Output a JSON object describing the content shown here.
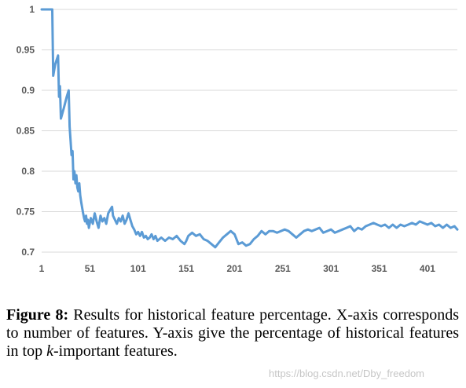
{
  "caption": {
    "label": "Figure 8:",
    "text_before_k": "Results for historical feature percentage. X-axis corresponds to number of features. Y-axis give the percentage of historical features in top ",
    "k": "k",
    "text_after_k": "-important features."
  },
  "watermark": "https://blog.csdn.net/Dby_freedom",
  "chart_data": {
    "type": "line",
    "title": "",
    "xlabel": "",
    "ylabel": "",
    "xlim": [
      1,
      432
    ],
    "ylim": [
      0.7,
      1.0
    ],
    "grid": "horizontal",
    "line_color": "#5b9bd5",
    "x_ticks": [
      1,
      51,
      101,
      151,
      201,
      251,
      301,
      351,
      401
    ],
    "y_ticks": [
      0.7,
      0.75,
      0.8,
      0.85,
      0.9,
      0.95,
      1
    ],
    "y_tick_labels": [
      "0.7",
      "0.75",
      "0.8",
      "0.85",
      "0.9",
      "0.95",
      "1"
    ],
    "series": [
      {
        "points": [
          [
            1,
            1.0
          ],
          [
            12,
            1.0
          ],
          [
            13,
            0.918
          ],
          [
            15,
            0.932
          ],
          [
            18,
            0.943
          ],
          [
            19,
            0.892
          ],
          [
            20,
            0.905
          ],
          [
            21,
            0.865
          ],
          [
            24,
            0.878
          ],
          [
            27,
            0.892
          ],
          [
            29,
            0.9
          ],
          [
            30,
            0.855
          ],
          [
            31,
            0.838
          ],
          [
            32,
            0.82
          ],
          [
            33,
            0.825
          ],
          [
            34,
            0.79
          ],
          [
            35,
            0.8
          ],
          [
            36,
            0.785
          ],
          [
            37,
            0.795
          ],
          [
            38,
            0.78
          ],
          [
            39,
            0.775
          ],
          [
            40,
            0.785
          ],
          [
            41,
            0.77
          ],
          [
            42,
            0.762
          ],
          [
            43,
            0.755
          ],
          [
            44,
            0.748
          ],
          [
            45,
            0.742
          ],
          [
            46,
            0.738
          ],
          [
            47,
            0.745
          ],
          [
            48,
            0.735
          ],
          [
            49,
            0.74
          ],
          [
            50,
            0.73
          ],
          [
            52,
            0.742
          ],
          [
            54,
            0.735
          ],
          [
            56,
            0.748
          ],
          [
            58,
            0.738
          ],
          [
            60,
            0.73
          ],
          [
            62,
            0.745
          ],
          [
            64,
            0.738
          ],
          [
            66,
            0.742
          ],
          [
            68,
            0.735
          ],
          [
            70,
            0.748
          ],
          [
            72,
            0.752
          ],
          [
            74,
            0.756
          ],
          [
            75,
            0.745
          ],
          [
            77,
            0.74
          ],
          [
            79,
            0.735
          ],
          [
            81,
            0.742
          ],
          [
            83,
            0.738
          ],
          [
            85,
            0.745
          ],
          [
            87,
            0.735
          ],
          [
            89,
            0.74
          ],
          [
            91,
            0.748
          ],
          [
            93,
            0.74
          ],
          [
            95,
            0.732
          ],
          [
            97,
            0.728
          ],
          [
            99,
            0.722
          ],
          [
            101,
            0.725
          ],
          [
            103,
            0.72
          ],
          [
            105,
            0.725
          ],
          [
            107,
            0.718
          ],
          [
            109,
            0.72
          ],
          [
            111,
            0.716
          ],
          [
            113,
            0.718
          ],
          [
            115,
            0.722
          ],
          [
            117,
            0.716
          ],
          [
            119,
            0.72
          ],
          [
            121,
            0.714
          ],
          [
            125,
            0.718
          ],
          [
            129,
            0.714
          ],
          [
            133,
            0.718
          ],
          [
            137,
            0.716
          ],
          [
            141,
            0.72
          ],
          [
            145,
            0.714
          ],
          [
            149,
            0.71
          ],
          [
            151,
            0.714
          ],
          [
            153,
            0.72
          ],
          [
            157,
            0.724
          ],
          [
            161,
            0.72
          ],
          [
            165,
            0.722
          ],
          [
            169,
            0.716
          ],
          [
            173,
            0.714
          ],
          [
            177,
            0.71
          ],
          [
            181,
            0.706
          ],
          [
            185,
            0.712
          ],
          [
            189,
            0.718
          ],
          [
            193,
            0.722
          ],
          [
            197,
            0.726
          ],
          [
            201,
            0.722
          ],
          [
            205,
            0.71
          ],
          [
            209,
            0.712
          ],
          [
            213,
            0.708
          ],
          [
            217,
            0.71
          ],
          [
            221,
            0.716
          ],
          [
            225,
            0.72
          ],
          [
            229,
            0.726
          ],
          [
            233,
            0.722
          ],
          [
            237,
            0.726
          ],
          [
            241,
            0.726
          ],
          [
            245,
            0.724
          ],
          [
            249,
            0.726
          ],
          [
            253,
            0.728
          ],
          [
            257,
            0.726
          ],
          [
            261,
            0.722
          ],
          [
            265,
            0.718
          ],
          [
            269,
            0.722
          ],
          [
            273,
            0.726
          ],
          [
            277,
            0.728
          ],
          [
            281,
            0.726
          ],
          [
            285,
            0.728
          ],
          [
            289,
            0.73
          ],
          [
            293,
            0.724
          ],
          [
            297,
            0.726
          ],
          [
            301,
            0.728
          ],
          [
            305,
            0.724
          ],
          [
            309,
            0.726
          ],
          [
            313,
            0.728
          ],
          [
            317,
            0.73
          ],
          [
            321,
            0.732
          ],
          [
            325,
            0.726
          ],
          [
            329,
            0.73
          ],
          [
            333,
            0.728
          ],
          [
            337,
            0.732
          ],
          [
            341,
            0.734
          ],
          [
            345,
            0.736
          ],
          [
            349,
            0.734
          ],
          [
            353,
            0.732
          ],
          [
            357,
            0.734
          ],
          [
            361,
            0.73
          ],
          [
            365,
            0.734
          ],
          [
            369,
            0.73
          ],
          [
            373,
            0.734
          ],
          [
            377,
            0.732
          ],
          [
            381,
            0.734
          ],
          [
            385,
            0.736
          ],
          [
            389,
            0.734
          ],
          [
            393,
            0.738
          ],
          [
            397,
            0.736
          ],
          [
            401,
            0.734
          ],
          [
            405,
            0.736
          ],
          [
            409,
            0.732
          ],
          [
            413,
            0.734
          ],
          [
            417,
            0.73
          ],
          [
            421,
            0.734
          ],
          [
            425,
            0.73
          ],
          [
            429,
            0.732
          ],
          [
            432,
            0.728
          ]
        ]
      }
    ]
  }
}
